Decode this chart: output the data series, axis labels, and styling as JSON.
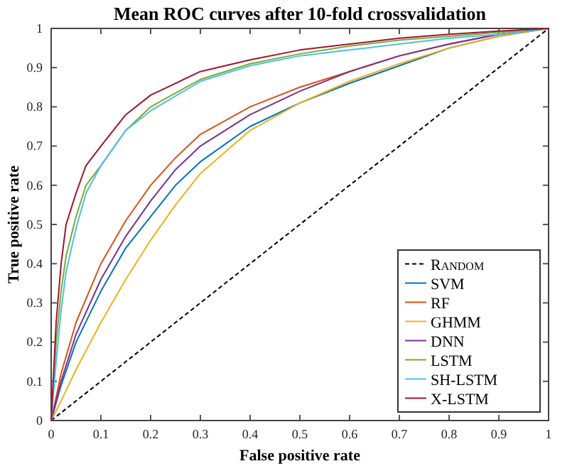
{
  "chart_data": {
    "type": "line",
    "title": "Mean ROC curves after 10-fold crossvalidation",
    "xlabel": "False positive rate",
    "ylabel": "True positive rate",
    "xlim": [
      0,
      1
    ],
    "ylim": [
      0,
      1
    ],
    "xticks": [
      0,
      0.1,
      0.2,
      0.3,
      0.4,
      0.5,
      0.6,
      0.7,
      0.8,
      0.9,
      1
    ],
    "yticks": [
      0,
      0.1,
      0.2,
      0.3,
      0.4,
      0.5,
      0.6,
      0.7,
      0.8,
      0.9,
      1
    ],
    "legend": "bottom right",
    "grid": false,
    "series": [
      {
        "name": "Random",
        "color": "#000000",
        "line_style": "dashed",
        "x": [
          0,
          1
        ],
        "values": [
          0,
          1
        ]
      },
      {
        "name": "SVM",
        "color": "#0072bd",
        "x": [
          0,
          0.02,
          0.05,
          0.1,
          0.15,
          0.2,
          0.25,
          0.3,
          0.4,
          0.5,
          0.6,
          0.7,
          0.8,
          0.9,
          1
        ],
        "values": [
          0,
          0.09,
          0.2,
          0.33,
          0.44,
          0.52,
          0.6,
          0.66,
          0.75,
          0.81,
          0.86,
          0.905,
          0.95,
          0.98,
          1
        ]
      },
      {
        "name": "RF",
        "color": "#d95319",
        "x": [
          0,
          0.02,
          0.05,
          0.1,
          0.15,
          0.2,
          0.25,
          0.3,
          0.4,
          0.5,
          0.6,
          0.7,
          0.8,
          0.9,
          1
        ],
        "values": [
          0,
          0.12,
          0.25,
          0.4,
          0.51,
          0.6,
          0.67,
          0.73,
          0.8,
          0.85,
          0.89,
          0.93,
          0.96,
          0.985,
          1
        ]
      },
      {
        "name": "GHMM",
        "color": "#edb120",
        "x": [
          0,
          0.02,
          0.05,
          0.1,
          0.15,
          0.2,
          0.25,
          0.3,
          0.4,
          0.5,
          0.6,
          0.7,
          0.8,
          0.9,
          1
        ],
        "values": [
          0,
          0.05,
          0.13,
          0.25,
          0.36,
          0.46,
          0.55,
          0.63,
          0.74,
          0.81,
          0.865,
          0.91,
          0.95,
          0.98,
          1
        ]
      },
      {
        "name": "DNN",
        "color": "#7e2f8e",
        "x": [
          0,
          0.02,
          0.05,
          0.1,
          0.15,
          0.2,
          0.25,
          0.3,
          0.4,
          0.5,
          0.6,
          0.7,
          0.8,
          0.9,
          1
        ],
        "values": [
          0,
          0.1,
          0.22,
          0.36,
          0.47,
          0.56,
          0.64,
          0.7,
          0.78,
          0.84,
          0.89,
          0.93,
          0.96,
          0.985,
          1
        ]
      },
      {
        "name": "LSTM",
        "color": "#77ac30",
        "x": [
          0,
          0.01,
          0.02,
          0.03,
          0.05,
          0.07,
          0.1,
          0.15,
          0.2,
          0.3,
          0.4,
          0.5,
          0.6,
          0.7,
          0.8,
          0.9,
          1
        ],
        "values": [
          0,
          0.2,
          0.33,
          0.42,
          0.52,
          0.6,
          0.65,
          0.74,
          0.8,
          0.87,
          0.91,
          0.935,
          0.955,
          0.97,
          0.98,
          0.99,
          1
        ]
      },
      {
        "name": "SH-LSTM",
        "color": "#4dbeee",
        "x": [
          0,
          0.01,
          0.02,
          0.03,
          0.05,
          0.07,
          0.1,
          0.15,
          0.2,
          0.3,
          0.4,
          0.5,
          0.6,
          0.7,
          0.8,
          0.9,
          1
        ],
        "values": [
          0,
          0.15,
          0.28,
          0.38,
          0.49,
          0.58,
          0.65,
          0.74,
          0.79,
          0.865,
          0.905,
          0.93,
          0.945,
          0.96,
          0.975,
          0.985,
          1
        ]
      },
      {
        "name": "X-LSTM",
        "color": "#a2142f",
        "x": [
          0,
          0.01,
          0.02,
          0.03,
          0.05,
          0.07,
          0.1,
          0.15,
          0.2,
          0.3,
          0.4,
          0.5,
          0.6,
          0.7,
          0.8,
          0.9,
          1
        ],
        "values": [
          0,
          0.25,
          0.4,
          0.5,
          0.58,
          0.65,
          0.7,
          0.78,
          0.83,
          0.89,
          0.92,
          0.945,
          0.96,
          0.975,
          0.985,
          0.993,
          1
        ]
      }
    ]
  }
}
